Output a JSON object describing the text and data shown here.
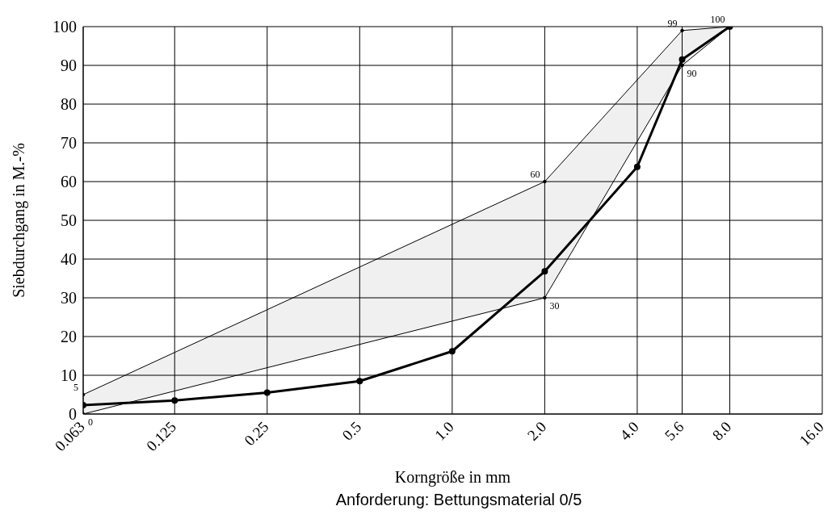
{
  "chart_data": {
    "type": "line",
    "xlabel": "Korngröße in mm",
    "ylabel": "Siebdurchgang in M.-%",
    "annotations": [
      "Anforderung: Bettungsmaterial 0/5"
    ],
    "log": "x",
    "xlim": [
      0.063,
      16
    ],
    "xticks": [
      0.063,
      0.125,
      0.25,
      0.5,
      {
        "value": 1,
        "label": "1.0"
      },
      {
        "value": 2,
        "label": "2.0"
      },
      {
        "value": 4,
        "label": "4.0"
      },
      5.6,
      {
        "value": 8,
        "label": "8.0"
      },
      {
        "value": 16,
        "label": "16.0"
      }
    ],
    "ylim": [
      0,
      100
    ],
    "yticks": [
      0,
      10,
      20,
      30,
      40,
      50,
      60,
      70,
      80,
      90,
      100
    ],
    "grid": true,
    "marker": "circle",
    "line_style": "solid",
    "series": [
      {
        "color": "#000000",
        "x": [
          0.063,
          2,
          5.6,
          8
        ],
        "values": [
          0,
          30,
          90,
          100
        ],
        "lower": [
          0,
          30,
          90,
          100
        ],
        "upper": [
          5,
          60,
          99,
          100
        ],
        "value_labels": [
          "0",
          "30",
          "90",
          null
        ]
      },
      {
        "color": "#000000",
        "x": [
          0.063,
          2,
          5.6,
          8
        ],
        "values": [
          5,
          60,
          99,
          100
        ],
        "value_labels": [
          "5",
          "60",
          "99",
          "100"
        ]
      },
      {
        "color": "#000000",
        "x": [
          0.063,
          0.125,
          0.25,
          0.5,
          1,
          2,
          4,
          5.6,
          8
        ],
        "values": [
          2.3,
          3.5,
          5.5,
          8.5,
          16.2,
          36.8,
          63.8,
          91.5,
          100
        ]
      }
    ]
  }
}
